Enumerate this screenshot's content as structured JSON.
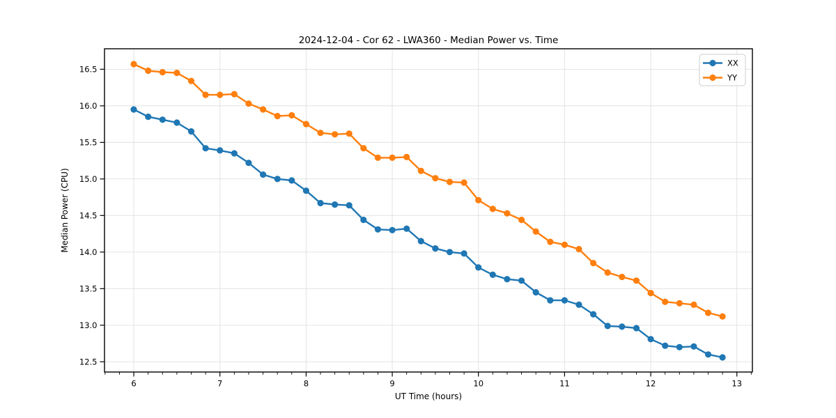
{
  "figure": {
    "title": "2024-12-04 - Cor 62 - LWA360 - Median Power vs. Time"
  },
  "colors": {
    "background": "#ffffff",
    "grid": "#e0e0e0",
    "spine": "#000000",
    "text": "#000000",
    "legend_border": "#cccccc",
    "series_xx": "#1f77b4",
    "series_yy": "#ff7f0e"
  },
  "chart_data": {
    "type": "line",
    "title": "2024-12-04 - Cor 62 - LWA360 - Median Power vs. Time",
    "xlabel": "UT Time (hours)",
    "ylabel": "Median Power (CPU)",
    "xlim": [
      5.66,
      13.18
    ],
    "ylim": [
      12.36,
      16.78
    ],
    "grid": true,
    "x_major_ticks": [
      6,
      7,
      8,
      9,
      10,
      11,
      12,
      13
    ],
    "x_tick_labels": [
      "6",
      "7",
      "8",
      "9",
      "10",
      "11",
      "12",
      "13"
    ],
    "x_minor_tick_step": 0.166667,
    "y_major_ticks": [
      12.5,
      13.0,
      13.5,
      14.0,
      14.5,
      15.0,
      15.5,
      16.0,
      16.5
    ],
    "y_tick_labels": [
      "12.5",
      "13.0",
      "13.5",
      "14.0",
      "14.5",
      "15.0",
      "15.5",
      "16.0",
      "16.5"
    ],
    "legend": {
      "position": "upper-right",
      "entries": [
        "XX",
        "YY"
      ]
    },
    "x": [
      6.0,
      6.1667,
      6.3333,
      6.5,
      6.6667,
      6.8333,
      7.0,
      7.1667,
      7.3333,
      7.5,
      7.6667,
      7.8333,
      8.0,
      8.1667,
      8.3333,
      8.5,
      8.6667,
      8.8333,
      9.0,
      9.1667,
      9.3333,
      9.5,
      9.6667,
      9.8333,
      10.0,
      10.1667,
      10.3333,
      10.5,
      10.6667,
      10.8333,
      11.0,
      11.1667,
      11.3333,
      11.5,
      11.6667,
      11.8333,
      12.0,
      12.1667,
      12.3333,
      12.5,
      12.6667,
      12.8333
    ],
    "series": [
      {
        "name": "XX",
        "color": "#1f77b4",
        "marker": "circle",
        "values": [
          15.95,
          15.85,
          15.81,
          15.77,
          15.65,
          15.42,
          15.39,
          15.35,
          15.22,
          15.06,
          15.0,
          14.98,
          14.84,
          14.67,
          14.65,
          14.64,
          14.44,
          14.31,
          14.3,
          14.32,
          14.15,
          14.05,
          14.0,
          13.98,
          13.79,
          13.69,
          13.63,
          13.61,
          13.45,
          13.34,
          13.34,
          13.28,
          13.15,
          12.99,
          12.98,
          12.96,
          12.81,
          12.72,
          12.7,
          12.71,
          12.6,
          12.56
        ]
      },
      {
        "name": "YY",
        "color": "#ff7f0e",
        "marker": "circle",
        "values": [
          16.57,
          16.48,
          16.46,
          16.45,
          16.34,
          16.15,
          16.15,
          16.16,
          16.03,
          15.95,
          15.86,
          15.87,
          15.75,
          15.63,
          15.61,
          15.62,
          15.42,
          15.29,
          15.29,
          15.3,
          15.11,
          15.01,
          14.96,
          14.95,
          14.71,
          14.59,
          14.53,
          14.44,
          14.28,
          14.14,
          14.1,
          14.04,
          13.85,
          13.72,
          13.66,
          13.61,
          13.44,
          13.32,
          13.3,
          13.28,
          13.17,
          13.12
        ]
      }
    ]
  }
}
